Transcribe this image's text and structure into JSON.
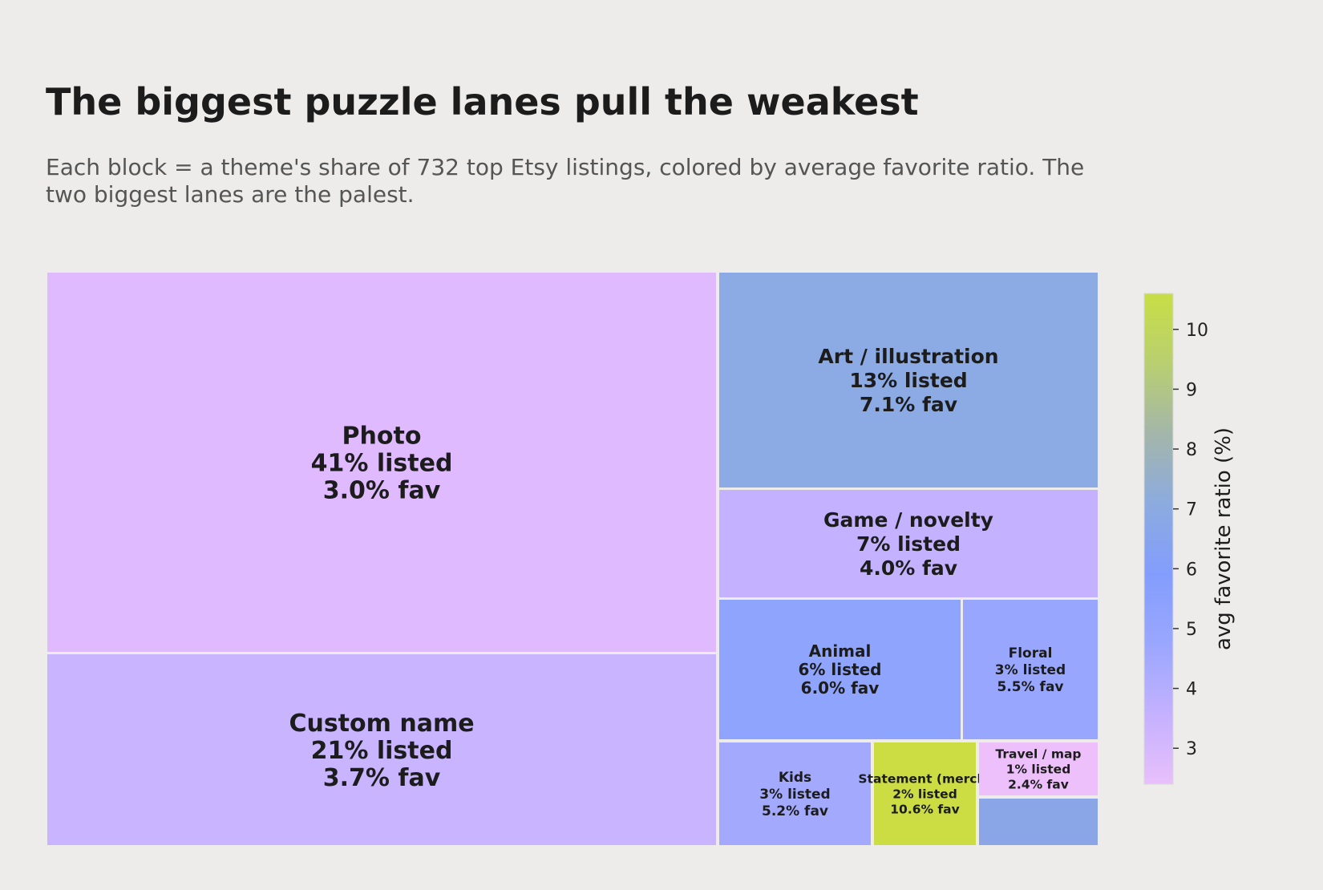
{
  "header": {
    "title": "The biggest puzzle lanes pull the weakest",
    "subtitle": "Each block = a theme's share of 732 top Etsy listings, colored by average favorite ratio. The two biggest lanes are the palest."
  },
  "chart_data": {
    "type": "treemap",
    "total_listings": 732,
    "tiles": [
      {
        "name": "Photo",
        "listed_pct": 41,
        "fav_pct": 3.0,
        "lines": [
          "Photo",
          "41% listed",
          "3.0% fav"
        ],
        "color": "#dfbaff"
      },
      {
        "name": "Custom name",
        "listed_pct": 21,
        "fav_pct": 3.7,
        "lines": [
          "Custom name",
          "21% listed",
          "3.7% fav"
        ],
        "color": "#c9b5ff"
      },
      {
        "name": "Art / illustration",
        "listed_pct": 13,
        "fav_pct": 7.1,
        "lines": [
          "Art / illustration",
          "13% listed",
          "7.1% fav"
        ],
        "color": "#8caae4"
      },
      {
        "name": "Game / novelty",
        "listed_pct": 7,
        "fav_pct": 4.0,
        "lines": [
          "Game / novelty",
          "7% listed",
          "4.0% fav"
        ],
        "color": "#c4b1ff"
      },
      {
        "name": "Animal",
        "listed_pct": 6,
        "fav_pct": 6.0,
        "lines": [
          "Animal",
          "6% listed",
          "6.0% fav"
        ],
        "color": "#8fa4fd"
      },
      {
        "name": "Floral",
        "listed_pct": 3,
        "fav_pct": 5.5,
        "lines": [
          "Floral",
          "3% listed",
          "5.5% fav"
        ],
        "color": "#98a7fd"
      },
      {
        "name": "Kids",
        "listed_pct": 3,
        "fav_pct": 5.2,
        "lines": [
          "Kids",
          "3% listed",
          "5.2% fav"
        ],
        "color": "#a3aafd"
      },
      {
        "name": "Statement (merch)",
        "listed_pct": 2,
        "fav_pct": 10.6,
        "lines": [
          "Statement (merch)",
          "2% listed",
          "10.6% fav"
        ],
        "color": "#ccdd44"
      },
      {
        "name": "Travel / map",
        "listed_pct": 1,
        "fav_pct": 2.4,
        "lines": [
          "Travel / map",
          "1% listed",
          "2.4% fav"
        ],
        "color": "#eec0fb"
      },
      {
        "name": "",
        "listed_pct": null,
        "fav_pct": null,
        "lines": [],
        "color": "#8aa6e6"
      }
    ],
    "colorbar": {
      "label": "avg favorite ratio (%)",
      "min": 2.4,
      "max": 10.6,
      "ticks": [
        3,
        4,
        5,
        6,
        7,
        8,
        9,
        10
      ],
      "tick_labels": [
        "3",
        "4",
        "5",
        "6",
        "7",
        "8",
        "9",
        "10"
      ],
      "gradient": [
        "#e8c0fb",
        "#c4b1ff",
        "#9aa7fe",
        "#839dfd",
        "#8cabdf",
        "#a4b6aa",
        "#b9cf70",
        "#c8de45"
      ]
    }
  }
}
